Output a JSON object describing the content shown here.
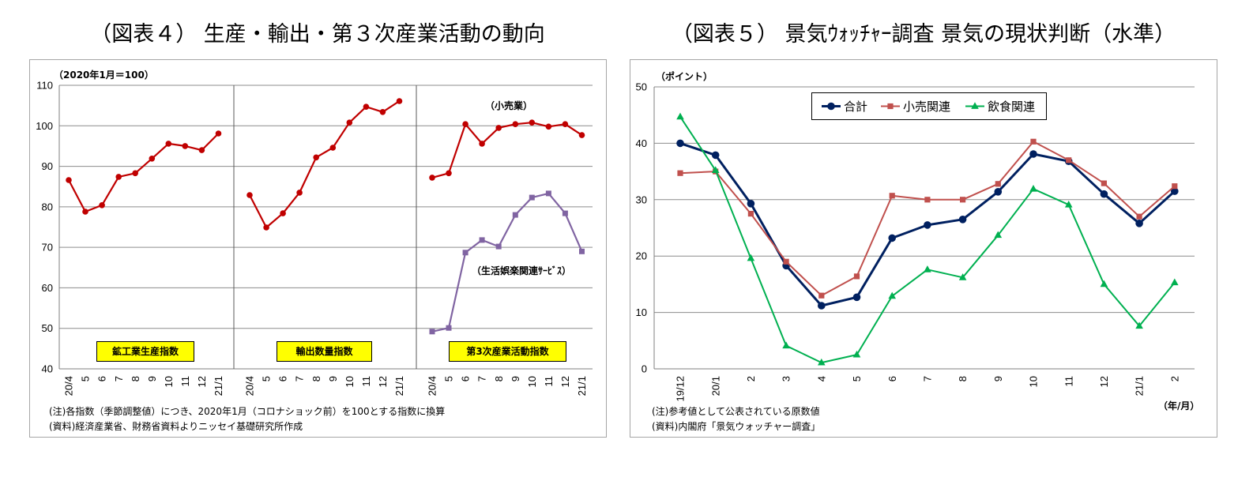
{
  "chart_data": [
    {
      "type": "line",
      "title": "（図表４） 生産・輸出・第３次産業活動の動向",
      "ylabel": "（2020年1月＝100）",
      "ylim": [
        40,
        110
      ],
      "yticks": [
        40,
        50,
        60,
        70,
        80,
        90,
        100,
        110
      ],
      "grid": true,
      "panels": [
        {
          "label": "鉱工業生産指数",
          "categories": [
            "20/4",
            "5",
            "6",
            "7",
            "8",
            "9",
            "10",
            "11",
            "12",
            "21/1"
          ],
          "series": [
            {
              "color": "#C00000",
              "marker": "circle",
              "values": [
                86.6,
                78.8,
                80.4,
                87.4,
                88.3,
                91.9,
                95.6,
                95.0,
                94.0,
                98.1
              ]
            }
          ]
        },
        {
          "label": "輸出数量指数",
          "categories": [
            "20/4",
            "5",
            "6",
            "7",
            "8",
            "9",
            "10",
            "11",
            "12",
            "21/1"
          ],
          "series": [
            {
              "color": "#C00000",
              "marker": "circle",
              "values": [
                82.9,
                74.9,
                78.4,
                83.5,
                92.2,
                94.6,
                100.8,
                104.7,
                103.4,
                106.1
              ]
            }
          ]
        },
        {
          "label": "第3次産業活動指数",
          "categories": [
            "20/4",
            "5",
            "6",
            "7",
            "8",
            "9",
            "10",
            "11",
            "12",
            "21/1"
          ],
          "series": [
            {
              "name": "（小売業）",
              "color": "#C00000",
              "marker": "circle",
              "values": [
                87.2,
                88.3,
                100.4,
                95.6,
                99.5,
                100.4,
                100.8,
                99.8,
                100.4,
                97.7
              ]
            },
            {
              "name": "（生活娯楽関連ｻｰﾋﾞｽ）",
              "color": "#8064A2",
              "marker": "square",
              "values": [
                49.2,
                50.1,
                68.7,
                71.8,
                70.2,
                78.0,
                82.3,
                83.3,
                78.4,
                69.0
              ]
            }
          ]
        }
      ],
      "notes": [
        "(注)各指数（季節調整値）につき、2020年1月（コロナショック前）を100とする指数に換算",
        "(資料)経済産業省、財務省資料よりニッセイ基礎研究所作成"
      ]
    },
    {
      "type": "line",
      "title": "（図表５） 景気ｳｫｯﾁｬｰ調査 景気の現状判断（水準）",
      "ylabel": "（ポイント）",
      "xlabel": "（年/月）",
      "ylim": [
        0,
        50
      ],
      "yticks": [
        0,
        10,
        20,
        30,
        40,
        50
      ],
      "grid": true,
      "legend": "top-center",
      "categories": [
        "19/12",
        "20/1",
        "2",
        "3",
        "4",
        "5",
        "6",
        "7",
        "8",
        "9",
        "10",
        "11",
        "12",
        "21/1",
        "2"
      ],
      "series": [
        {
          "name": "合計",
          "color": "#002060",
          "marker": "circle",
          "values": [
            40.0,
            37.9,
            29.3,
            18.3,
            11.2,
            12.7,
            23.2,
            25.5,
            26.5,
            31.4,
            38.1,
            36.8,
            31.0,
            25.8,
            31.5
          ]
        },
        {
          "name": "小売関連",
          "color": "#C0504D",
          "marker": "square",
          "values": [
            34.7,
            35.0,
            27.5,
            19.0,
            13.0,
            16.4,
            30.7,
            30.0,
            30.0,
            32.8,
            40.3,
            37.0,
            32.9,
            27.0,
            32.4
          ]
        },
        {
          "name": "飲食関連",
          "color": "#00B050",
          "marker": "triangle",
          "values": [
            44.7,
            35.2,
            19.6,
            4.1,
            1.1,
            2.5,
            12.9,
            17.6,
            16.2,
            23.7,
            31.9,
            29.1,
            15.0,
            7.6,
            15.3
          ]
        }
      ],
      "notes": [
        "(注)参考値として公表されている原数値",
        "(資料)内閣府「景気ウォッチャー調査」"
      ]
    }
  ]
}
